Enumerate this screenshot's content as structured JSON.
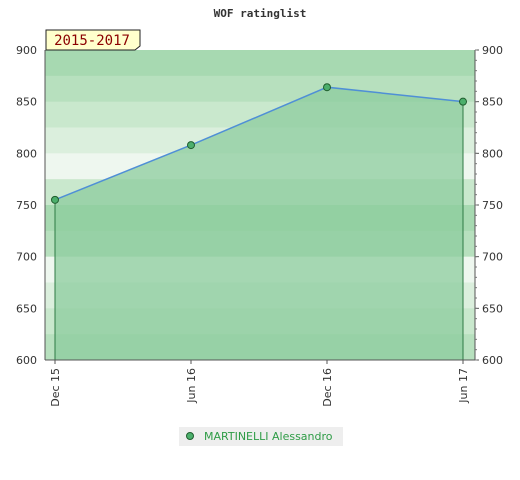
{
  "chart_data": {
    "type": "area",
    "title": "WOF ratinglist",
    "period_badge": "2015-2017",
    "categories": [
      "Dec 15",
      "Jun 16",
      "Dec 16",
      "Jun 17"
    ],
    "series": [
      {
        "name": "MARTINELLI Alessandro",
        "values": [
          755,
          808,
          864,
          850
        ]
      }
    ],
    "ylim": [
      600,
      900
    ],
    "yticks": [
      600,
      650,
      700,
      750,
      800,
      850,
      900
    ],
    "grid": true,
    "legend_position": "bottom",
    "colors": {
      "line": "#4f8fd6",
      "area": "#8ccc9e",
      "marker": "#4caf6c",
      "marker_stroke": "#1f5e2e",
      "legend_text": "#2e9c46",
      "legend_bg": "#eeeeee",
      "badge_bg": "#ffffcc",
      "badge_text": "#8b0000"
    }
  }
}
